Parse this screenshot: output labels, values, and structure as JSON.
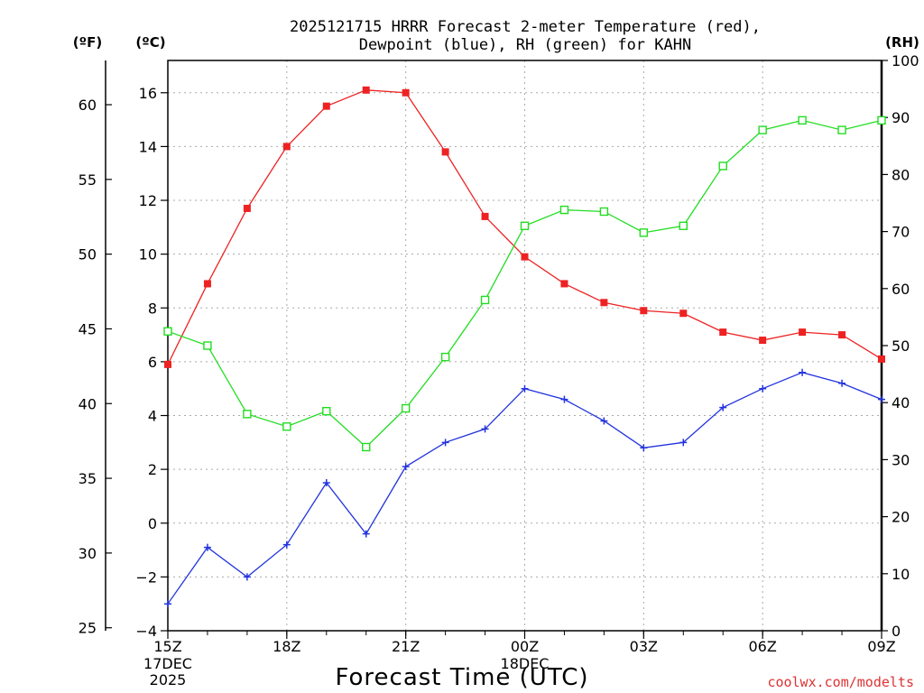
{
  "chart_data": {
    "type": "line",
    "title": "2025121715 HRRR Forecast 2-meter Temperature (red),",
    "subtitle": "Dewpoint (blue), RH (green) for KAHN",
    "xlabel": "Forecast Time (UTC)",
    "y_left_outer_unit": "(ºF)",
    "y_left_inner_unit": "(ºC)",
    "y_right_unit": "(RH)",
    "x_ticks": [
      {
        "hour": 0,
        "label": "15Z",
        "date_line1": "17DEC",
        "date_line2": "2025"
      },
      {
        "hour": 3,
        "label": "18Z"
      },
      {
        "hour": 6,
        "label": "21Z"
      },
      {
        "hour": 9,
        "label": "00Z",
        "date_line1": "18DEC"
      },
      {
        "hour": 12,
        "label": "03Z"
      },
      {
        "hour": 15,
        "label": "06Z"
      },
      {
        "hour": 18,
        "label": "09Z"
      }
    ],
    "x_range": [
      0,
      18
    ],
    "celsius_range": [
      -4,
      17.2
    ],
    "celsius_ticks": [
      -4,
      -2,
      0,
      2,
      4,
      6,
      8,
      10,
      12,
      14,
      16
    ],
    "fahrenheit_ticks": [
      25,
      30,
      35,
      40,
      45,
      50,
      55,
      60
    ],
    "rh_range": [
      0,
      100
    ],
    "rh_ticks": [
      0,
      10,
      20,
      30,
      40,
      50,
      60,
      70,
      80,
      90,
      100
    ],
    "series": [
      {
        "name": "2-meter Temperature",
        "unit": "C",
        "color": "#ee2222",
        "marker": "filled-square",
        "x": [
          0,
          1,
          2,
          3,
          4,
          5,
          6,
          7,
          8,
          9,
          10,
          11,
          12,
          13,
          14,
          15,
          16,
          17,
          18
        ],
        "values": [
          5.9,
          8.9,
          11.7,
          14.0,
          15.5,
          16.1,
          16.0,
          13.8,
          11.4,
          9.9,
          8.9,
          8.2,
          7.9,
          7.8,
          7.1,
          6.8,
          7.1,
          7.0,
          6.1
        ]
      },
      {
        "name": "Dewpoint",
        "unit": "C",
        "color": "#2233dd",
        "marker": "plus",
        "x": [
          0,
          1,
          2,
          3,
          4,
          5,
          6,
          7,
          8,
          9,
          10,
          11,
          12,
          13,
          14,
          15,
          16,
          17,
          18
        ],
        "values": [
          -3.0,
          -0.9,
          -2.0,
          -0.8,
          1.5,
          -0.4,
          2.1,
          3.0,
          3.5,
          5.0,
          4.6,
          3.8,
          2.8,
          3.0,
          4.3,
          5.0,
          5.6,
          5.2,
          4.6
        ]
      },
      {
        "name": "RH",
        "unit": "%",
        "color": "#22dd22",
        "marker": "open-square",
        "x": [
          0,
          1,
          2,
          3,
          4,
          5,
          6,
          7,
          8,
          9,
          10,
          11,
          12,
          13,
          14,
          15,
          16,
          17,
          18
        ],
        "values": [
          52.5,
          50.0,
          38.0,
          35.8,
          38.5,
          32.2,
          39.0,
          48.0,
          58.0,
          71.0,
          73.8,
          73.5,
          69.8,
          71.0,
          81.5,
          87.8,
          89.5,
          87.8,
          89.5
        ]
      }
    ],
    "grid": true,
    "credit": "coolwx.com/modelts"
  }
}
